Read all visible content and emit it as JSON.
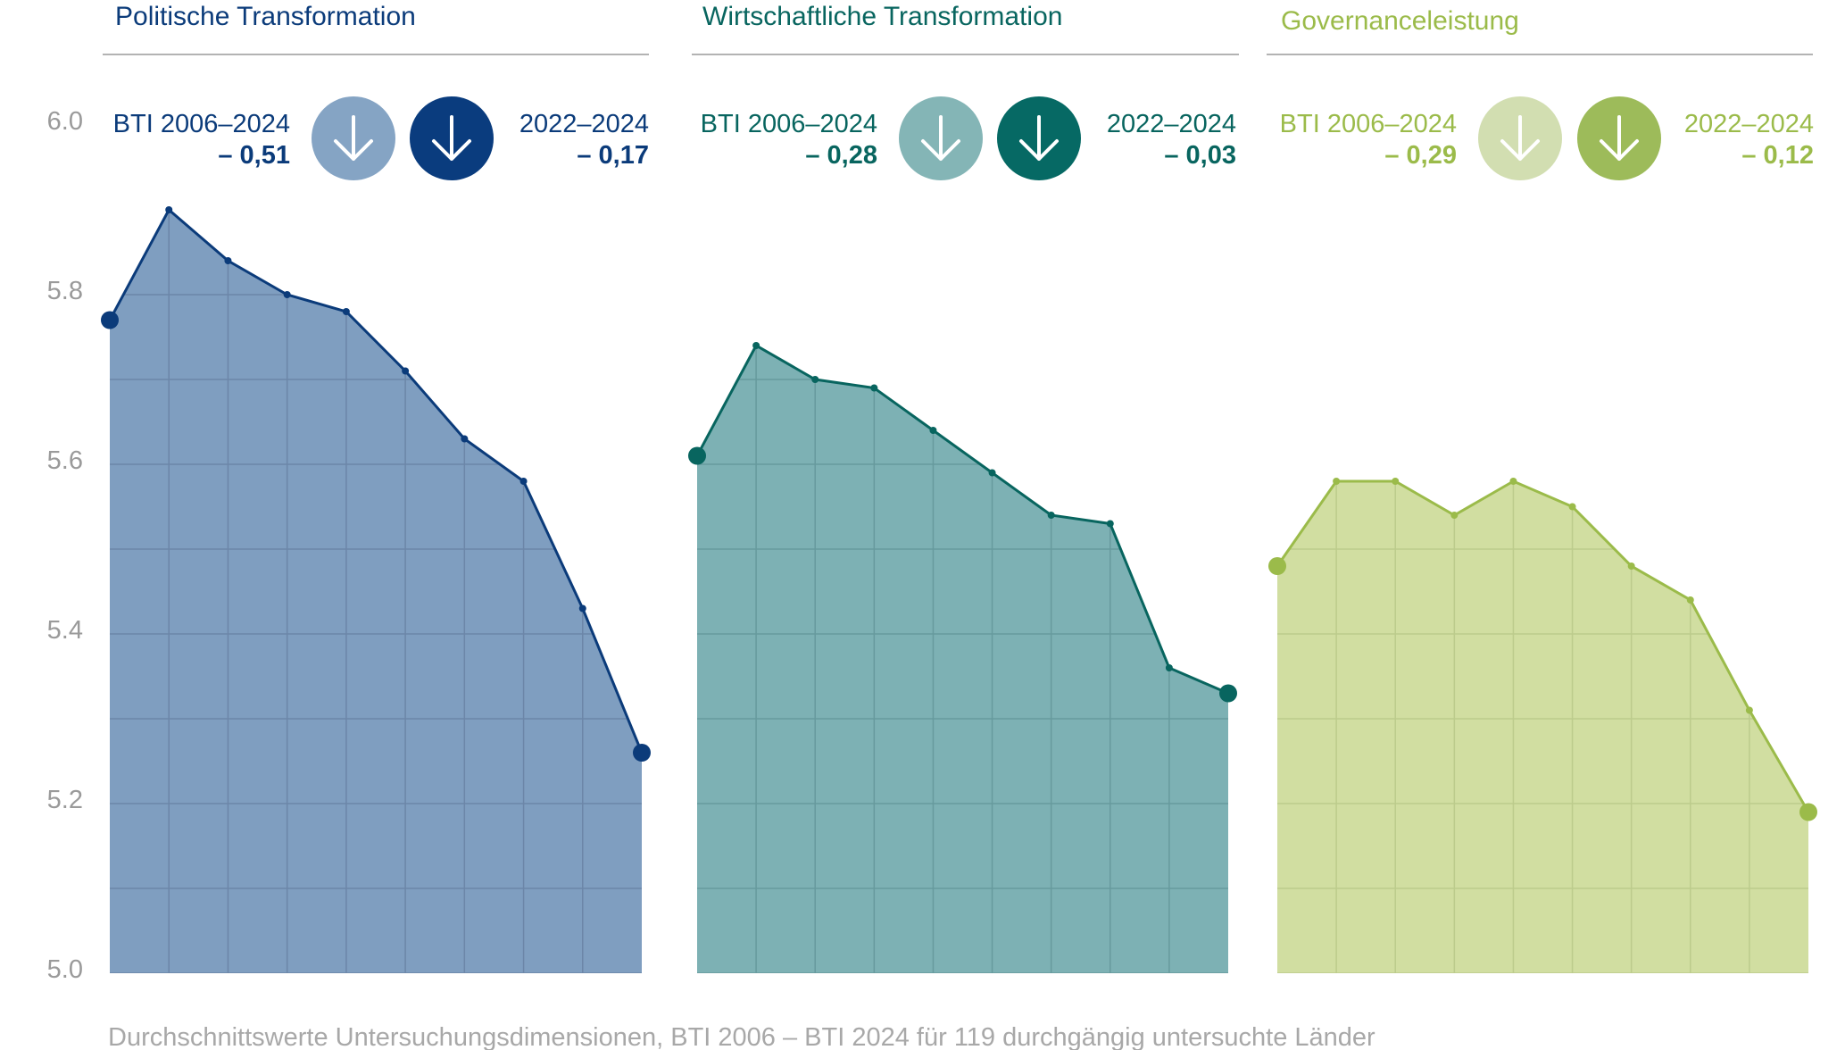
{
  "chart_data": {
    "type": "area",
    "ylim": [
      5.0,
      6.0
    ],
    "yticks": [
      "5.0",
      "5.2",
      "5.4",
      "5.6",
      "5.8",
      "6.0"
    ],
    "n_points": 10,
    "grid": true,
    "caption": "Durchschnittswerte Untersuchungsdimensionen, BTI 2006 – BTI 2024 für 119 durchgängig untersuchte Länder",
    "panels": [
      {
        "title": "Politische Transformation",
        "long_label": "BTI 2006–2024",
        "long_change": "– 0,51",
        "short_label": "2022–2024",
        "short_change": "– 0,17",
        "values": [
          5.77,
          5.9,
          5.84,
          5.8,
          5.78,
          5.71,
          5.63,
          5.58,
          5.43,
          5.26
        ],
        "colors": {
          "line": "#0b3b7a",
          "fill": "#7f9ec0",
          "grid": "#6c86a8",
          "light": "#85a4c4",
          "dark": "#0a3c7e"
        }
      },
      {
        "title": "Wirtschaftliche Transformation",
        "long_label": "BTI 2006–2024",
        "long_change": "– 0,28",
        "short_label": "2022–2024",
        "short_change": "– 0,03",
        "values": [
          5.61,
          5.74,
          5.7,
          5.69,
          5.64,
          5.59,
          5.54,
          5.53,
          5.36,
          5.33
        ],
        "colors": {
          "line": "#08655f",
          "fill": "#7db1b4",
          "grid": "#679a9d",
          "light": "#84b5b6",
          "dark": "#066964"
        }
      },
      {
        "title": "Governanceleistung",
        "long_label": "BTI 2006–2024",
        "long_change": "– 0,29",
        "short_label": "2022–2024",
        "short_change": "– 0,12",
        "values": [
          5.48,
          5.58,
          5.58,
          5.54,
          5.58,
          5.55,
          5.48,
          5.44,
          5.31,
          5.19
        ],
        "colors": {
          "line": "#9bbb4a",
          "fill": "#d1deA1",
          "grid": "#bccb8c",
          "light": "#d2deb1",
          "dark": "#9dbb5a"
        }
      }
    ]
  }
}
